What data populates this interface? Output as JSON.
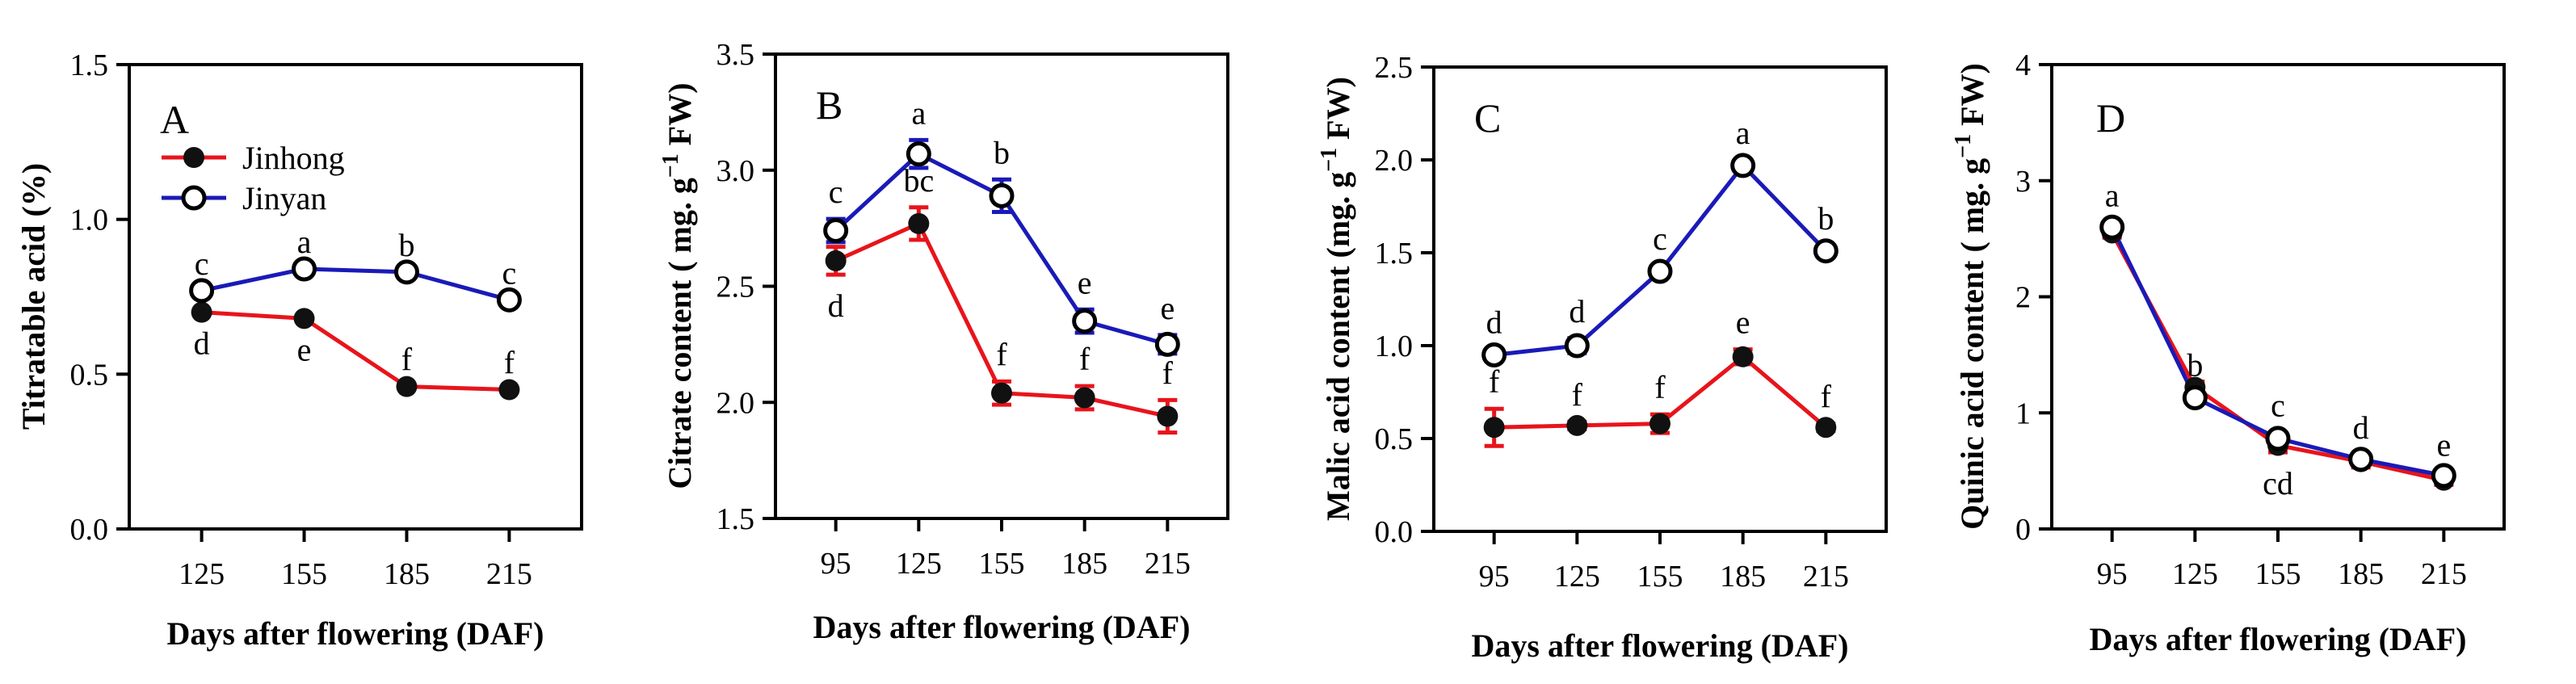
{
  "figure": {
    "xlabel": "Days after flowering (DAF)",
    "legend": {
      "placement": "upper-left of panel A",
      "entries": [
        "Jinhong",
        "Jinyan"
      ]
    },
    "series_colors": {
      "Jinhong": "#e8141b",
      "Jinyan": "#1a1ab8"
    }
  },
  "chart_data": [
    {
      "type": "line",
      "panel_label": "A",
      "ylabel": "Titratable acid (%)",
      "xlabel": "Days after flowering (DAF)",
      "x": [
        125,
        155,
        185,
        215
      ],
      "ylim": [
        0.0,
        1.5
      ],
      "yticks": [
        0.0,
        0.5,
        1.0,
        1.5
      ],
      "yticklabels": [
        "0.0",
        "0.5",
        "1.0",
        "1.5"
      ],
      "xticklabels": [
        "125",
        "155",
        "185",
        "215"
      ],
      "series": [
        {
          "name": "Jinhong",
          "marker": "filled",
          "values": [
            0.7,
            0.68,
            0.46,
            0.45
          ],
          "errors": [
            0,
            0,
            0,
            0
          ],
          "letters": [
            "d",
            "e",
            "f",
            "f"
          ],
          "letter_pos": [
            "below",
            "below",
            "above",
            "above"
          ]
        },
        {
          "name": "Jinyan",
          "marker": "open",
          "values": [
            0.77,
            0.84,
            0.83,
            0.74
          ],
          "errors": [
            0,
            0,
            0,
            0
          ],
          "letters": [
            "c",
            "a",
            "b",
            "c"
          ],
          "letter_pos": [
            "above",
            "above",
            "above",
            "above"
          ]
        }
      ]
    },
    {
      "type": "line",
      "panel_label": "B",
      "ylabel_main": "Citrate content ( mg. g",
      "ylabel_sup": "−1",
      "ylabel_tail": " FW)",
      "xlabel": "Days after flowering (DAF)",
      "x": [
        95,
        125,
        155,
        185,
        215
      ],
      "ylim": [
        1.5,
        3.5
      ],
      "yticks": [
        1.5,
        2.0,
        2.5,
        3.0,
        3.5
      ],
      "yticklabels": [
        "1.5",
        "2.0",
        "2.5",
        "3.0",
        "3.5"
      ],
      "xticklabels": [
        "95",
        "125",
        "155",
        "185",
        "215"
      ],
      "series": [
        {
          "name": "Jinhong",
          "marker": "filled",
          "values": [
            2.61,
            2.77,
            2.04,
            2.02,
            1.94
          ],
          "errors": [
            0.06,
            0.07,
            0.05,
            0.05,
            0.07
          ],
          "letters": [
            "d",
            "bc",
            "f",
            "f",
            "f"
          ],
          "letter_pos": [
            "below",
            "above",
            "above",
            "above",
            "above"
          ]
        },
        {
          "name": "Jinyan",
          "marker": "open",
          "values": [
            2.74,
            3.07,
            2.89,
            2.35,
            2.25
          ],
          "errors": [
            0.05,
            0.06,
            0.07,
            0.05,
            0.04
          ],
          "letters": [
            "c",
            "a",
            "b",
            "e",
            "e"
          ],
          "letter_pos": [
            "above",
            "above",
            "above",
            "above",
            "above"
          ]
        }
      ]
    },
    {
      "type": "line",
      "panel_label": "C",
      "ylabel_main": "Malic acid content (mg. g",
      "ylabel_sup": "−1",
      "ylabel_tail": " FW)",
      "xlabel": "Days after flowering (DAF)",
      "x": [
        95,
        125,
        155,
        185,
        215
      ],
      "ylim": [
        0.0,
        2.5
      ],
      "yticks": [
        0.0,
        0.5,
        1.0,
        1.5,
        2.0,
        2.5
      ],
      "yticklabels": [
        "0.0",
        "0.5",
        "1.0",
        "1.5",
        "2.0",
        "2.5"
      ],
      "xticklabels": [
        "95",
        "125",
        "155",
        "185",
        "215"
      ],
      "series": [
        {
          "name": "Jinhong",
          "marker": "filled",
          "values": [
            0.56,
            0.57,
            0.58,
            0.94,
            0.56
          ],
          "errors": [
            0.1,
            0.02,
            0.05,
            0.04,
            0.02
          ],
          "letters": [
            "f",
            "f",
            "f",
            "e",
            "f"
          ],
          "letter_pos": [
            "above",
            "above",
            "above",
            "above",
            "above"
          ]
        },
        {
          "name": "Jinyan",
          "marker": "open",
          "values": [
            0.95,
            1.0,
            1.4,
            1.97,
            1.51
          ],
          "errors": [
            0.03,
            0.04,
            0.03,
            0.03,
            0.03
          ],
          "letters": [
            "d",
            "d",
            "c",
            "a",
            "b"
          ],
          "letter_pos": [
            "above",
            "above",
            "above",
            "above",
            "above"
          ]
        }
      ]
    },
    {
      "type": "line",
      "panel_label": "D",
      "ylabel_main": "Quinic acid content ( mg. g",
      "ylabel_sup": "−1",
      "ylabel_tail": " FW)",
      "xlabel": "Days after flowering (DAF)",
      "x": [
        95,
        125,
        155,
        185,
        215
      ],
      "ylim": [
        0,
        4
      ],
      "yticks": [
        0,
        1,
        2,
        3,
        4
      ],
      "yticklabels": [
        "0",
        "1",
        "2",
        "3",
        "4"
      ],
      "xticklabels": [
        "95",
        "125",
        "155",
        "185",
        "215"
      ],
      "series": [
        {
          "name": "Jinhong",
          "marker": "filled",
          "values": [
            2.55,
            1.22,
            0.72,
            0.58,
            0.42
          ],
          "errors": [
            0.04,
            0.05,
            0.06,
            0.05,
            0.04
          ],
          "letters": [
            "",
            "",
            "cd",
            "",
            ""
          ],
          "letter_pos": [
            "below",
            "below",
            "below",
            "below",
            "below"
          ]
        },
        {
          "name": "Jinyan",
          "marker": "open",
          "values": [
            2.6,
            1.13,
            0.78,
            0.6,
            0.46
          ],
          "errors": [
            0.04,
            0.05,
            0.05,
            0.04,
            0.03
          ],
          "letters": [
            "a",
            "b",
            "c",
            "d",
            "e"
          ],
          "letter_pos": [
            "above",
            "above",
            "above",
            "above",
            "above"
          ]
        }
      ]
    }
  ]
}
